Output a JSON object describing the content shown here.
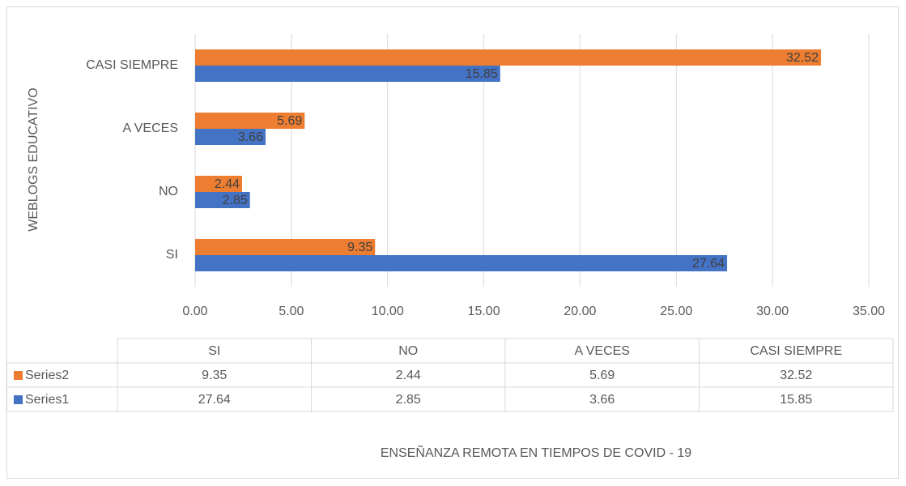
{
  "chart_data": {
    "type": "bar",
    "orientation": "horizontal",
    "x_axis_label": "ENSEÑANZA REMOTA EN TIEMPOS DE COVID - 19",
    "y_axis_label": "WEBLOGS EDUCATIVO",
    "categories": [
      "SI",
      "NO",
      "A VECES",
      "CASI SIEMPRE"
    ],
    "series": [
      {
        "name": "Series1",
        "color": "#4472c4",
        "values": [
          27.64,
          2.85,
          3.66,
          15.85
        ]
      },
      {
        "name": "Series2",
        "color": "#ed7d31",
        "values": [
          9.35,
          2.44,
          5.69,
          32.52
        ]
      }
    ],
    "xlim": [
      0,
      35
    ],
    "xticks": [
      {
        "value": 0,
        "label": "0.00"
      },
      {
        "value": 5,
        "label": "5.00"
      },
      {
        "value": 10,
        "label": "10.00"
      },
      {
        "value": 15,
        "label": "15.00"
      },
      {
        "value": 20,
        "label": "20.00"
      },
      {
        "value": 25,
        "label": "25.00"
      },
      {
        "value": 30,
        "label": "30.00"
      },
      {
        "value": 35,
        "label": "35.00"
      }
    ],
    "grid": true,
    "data_table": true
  }
}
